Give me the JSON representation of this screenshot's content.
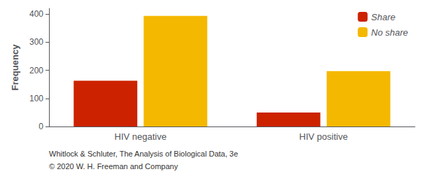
{
  "chart_data": {
    "type": "bar",
    "categories": [
      "HIV negative",
      "HIV positive"
    ],
    "series": [
      {
        "name": "Share",
        "color": "#cc2200",
        "values": [
          163,
          50
        ]
      },
      {
        "name": "No share",
        "color": "#f5b800",
        "values": [
          393,
          197
        ]
      }
    ],
    "ylabel": "Frequency",
    "ylim": [
      0,
      420
    ],
    "yticks": [
      0,
      100,
      200,
      300,
      400
    ],
    "grid": false,
    "legend": "upper right",
    "annotations": [
      "Whitlock & Schluter, The Analysis of Biological Data, 3e",
      "© 2020 W. H. Freeman and Company"
    ]
  }
}
